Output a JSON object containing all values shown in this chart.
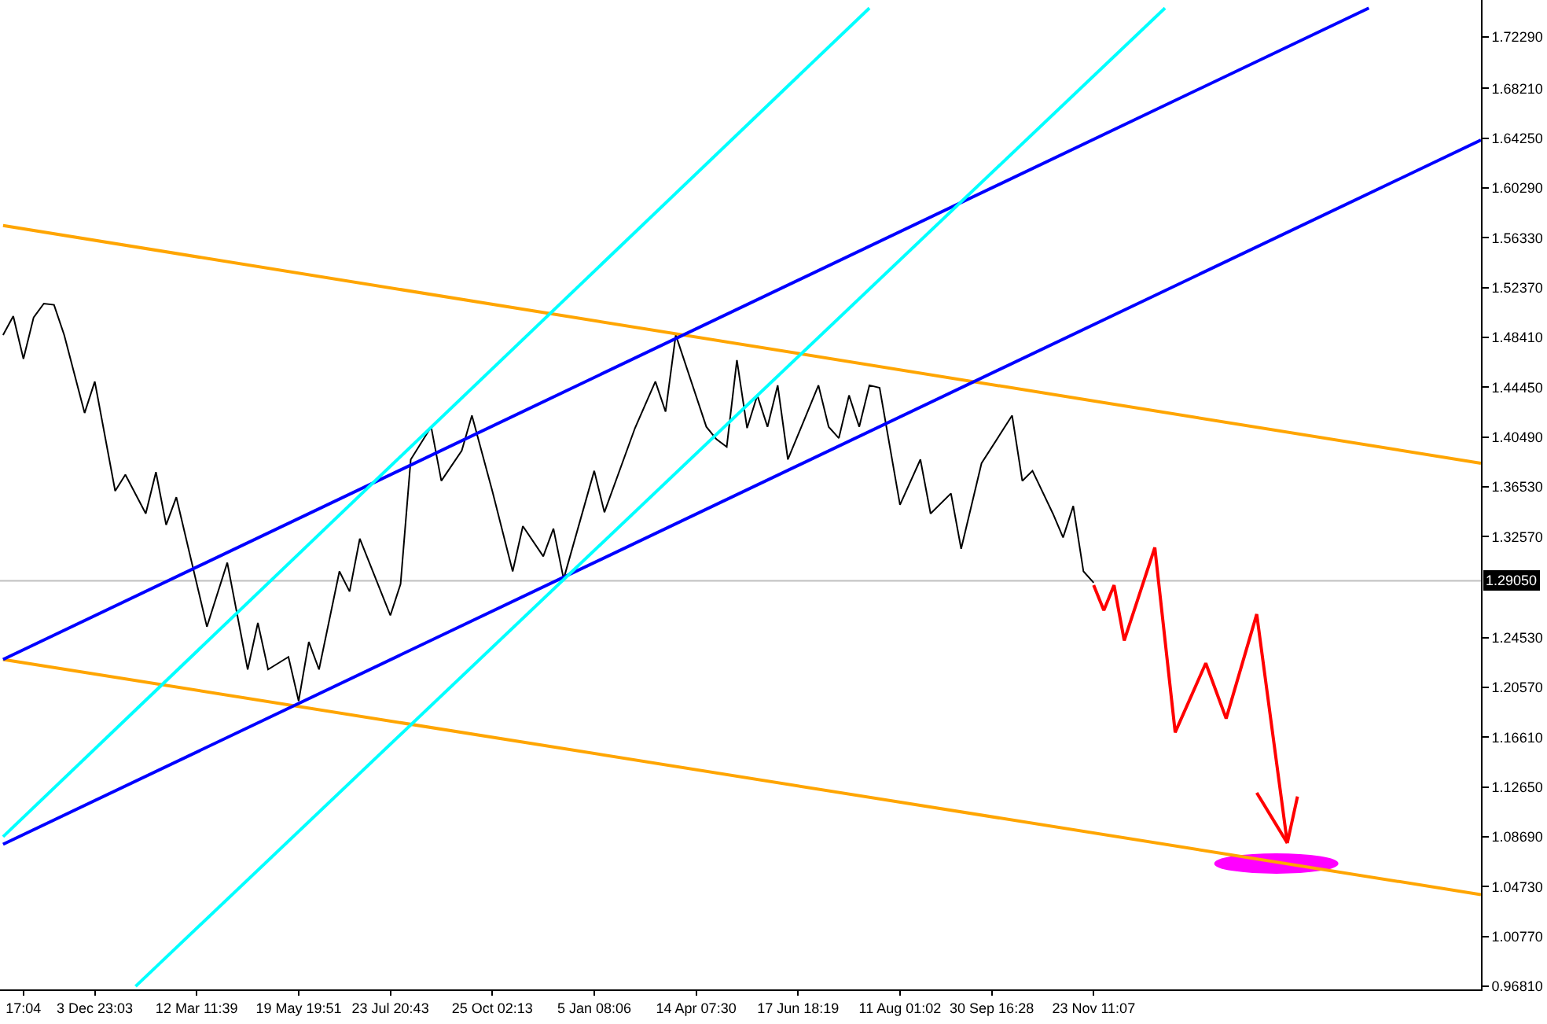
{
  "chart_data": {
    "type": "line",
    "ylim": [
      0.9656,
      1.7524
    ],
    "categories": [
      null,
      null,
      "17:04",
      null,
      null,
      null,
      null,
      null,
      null,
      "3 Dec 23:03",
      null,
      null,
      null,
      null,
      null,
      null,
      null,
      null,
      null,
      "12 Mar 11:39",
      null,
      null,
      null,
      null,
      null,
      null,
      null,
      null,
      null,
      "19 May 19:51",
      null,
      null,
      null,
      null,
      null,
      null,
      null,
      null,
      "23 Jul 20:43",
      null,
      null,
      null,
      null,
      null,
      null,
      null,
      null,
      null,
      "25 Oct 02:13",
      null,
      null,
      null,
      null,
      null,
      null,
      null,
      null,
      null,
      "5 Jan 08:06",
      null,
      null,
      null,
      null,
      null,
      null,
      null,
      null,
      null,
      "14 Apr 07:30",
      null,
      null,
      null,
      null,
      null,
      null,
      null,
      null,
      null,
      "17 Jun 18:19",
      null,
      null,
      null,
      null,
      null,
      null,
      null,
      null,
      null,
      "11 Aug 01:02",
      null,
      null,
      null,
      null,
      null,
      null,
      null,
      null,
      "30 Sep 16:28",
      null,
      null,
      null,
      null,
      null,
      null,
      null,
      null,
      null,
      "23 Nov 11:07",
      null,
      null,
      null,
      null,
      null,
      null,
      null,
      null,
      null,
      null,
      null,
      null,
      null,
      null,
      null,
      null,
      null,
      null,
      null,
      null,
      null,
      null,
      null,
      null,
      null,
      null,
      null,
      null,
      null,
      null,
      null,
      null,
      null,
      null,
      null,
      null,
      null,
      null
    ],
    "yticks": [
      {
        "value": 0.9681,
        "label": "0.96810"
      },
      {
        "value": 1.0077,
        "label": "1.00770"
      },
      {
        "value": 1.0473,
        "label": "1.04730"
      },
      {
        "value": 1.0869,
        "label": "1.08690"
      },
      {
        "value": 1.1265,
        "label": "1.12650"
      },
      {
        "value": 1.1661,
        "label": "1.16610"
      },
      {
        "value": 1.2057,
        "label": "1.20570"
      },
      {
        "value": 1.2453,
        "label": "1.24530"
      },
      {
        "value": 1.3257,
        "label": "1.32570"
      },
      {
        "value": 1.3653,
        "label": "1.36530"
      },
      {
        "value": 1.4049,
        "label": "1.40490"
      },
      {
        "value": 1.4445,
        "label": "1.44450"
      },
      {
        "value": 1.4841,
        "label": "1.48410"
      },
      {
        "value": 1.5237,
        "label": "1.52370"
      },
      {
        "value": 1.5633,
        "label": "1.56330"
      },
      {
        "value": 1.6029,
        "label": "1.60290"
      },
      {
        "value": 1.6425,
        "label": "1.64250"
      },
      {
        "value": 1.6821,
        "label": "1.68210"
      },
      {
        "value": 1.7229,
        "label": "1.72290"
      }
    ],
    "grid": false,
    "marker": "none",
    "line_style": "solid",
    "ref_lines": [
      {
        "axis": "y",
        "value": 1.2905,
        "label": "1.29050",
        "color": "#c0c0c0"
      }
    ],
    "series": [
      {
        "color": "#000000",
        "values": [
          1.486,
          1.501,
          1.467,
          1.5,
          1.511,
          1.51,
          1.486,
          null,
          1.424,
          1.449,
          null,
          1.362,
          1.375,
          null,
          1.344,
          1.377,
          1.335,
          1.357,
          null,
          null,
          1.254,
          null,
          1.305,
          null,
          1.22,
          1.257,
          1.22,
          null,
          1.23,
          1.195,
          1.242,
          1.22,
          null,
          1.298,
          1.282,
          1.324,
          null,
          null,
          1.263,
          1.288,
          1.387,
          null,
          1.413,
          1.37,
          null,
          1.394,
          1.422,
          null,
          1.362,
          null,
          1.298,
          1.334,
          null,
          1.31,
          1.332,
          1.292,
          null,
          null,
          1.378,
          1.345,
          null,
          null,
          1.412,
          null,
          1.449,
          1.425,
          1.486,
          null,
          null,
          1.413,
          1.403,
          1.397,
          1.466,
          1.412,
          1.438,
          1.413,
          1.446,
          1.387,
          null,
          null,
          1.446,
          1.413,
          1.404,
          1.438,
          1.413,
          1.446,
          1.444,
          null,
          1.351,
          null,
          1.387,
          1.344,
          null,
          1.36,
          1.316,
          null,
          1.384,
          null,
          null,
          1.422,
          1.37,
          1.378,
          null,
          1.344,
          1.325,
          1.35,
          1.298,
          1.289,
          null,
          null,
          null,
          null,
          null,
          null,
          null,
          null,
          null,
          null,
          null,
          null,
          null,
          null,
          null,
          null,
          null,
          null,
          null,
          null,
          null,
          null,
          null,
          null,
          null,
          null,
          null,
          null,
          null,
          null,
          null,
          null,
          null,
          null,
          null,
          null,
          null,
          null
        ]
      },
      {
        "color": "#ffa500",
        "values": [
          1.573,
          null,
          null,
          null,
          null,
          null,
          null,
          null,
          null,
          null,
          null,
          null,
          null,
          null,
          null,
          null,
          null,
          null,
          null,
          null,
          null,
          null,
          null,
          null,
          null,
          null,
          null,
          null,
          null,
          null,
          null,
          null,
          null,
          null,
          null,
          null,
          null,
          null,
          null,
          null,
          null,
          null,
          null,
          null,
          null,
          null,
          null,
          null,
          null,
          null,
          null,
          null,
          null,
          null,
          null,
          null,
          null,
          null,
          null,
          null,
          null,
          null,
          null,
          null,
          null,
          null,
          null,
          null,
          null,
          null,
          null,
          null,
          null,
          null,
          null,
          null,
          null,
          null,
          null,
          null,
          null,
          null,
          null,
          null,
          null,
          null,
          null,
          null,
          null,
          null,
          null,
          null,
          null,
          null,
          null,
          null,
          null,
          null,
          null,
          null,
          null,
          null,
          null,
          null,
          null,
          null,
          null,
          null,
          null,
          null,
          null,
          null,
          null,
          null,
          null,
          null,
          null,
          null,
          null,
          null,
          null,
          null,
          null,
          null,
          null,
          null,
          null,
          null,
          null,
          null,
          null,
          null,
          null,
          null,
          null,
          null,
          null,
          null,
          null,
          null,
          null,
          null,
          null,
          null,
          null,
          1.384
        ]
      },
      {
        "color": "#ffa500",
        "values": [
          1.228,
          null,
          null,
          null,
          null,
          null,
          null,
          null,
          null,
          null,
          null,
          null,
          null,
          null,
          null,
          null,
          null,
          null,
          null,
          null,
          null,
          null,
          null,
          null,
          null,
          null,
          null,
          null,
          null,
          null,
          null,
          null,
          null,
          null,
          null,
          null,
          null,
          null,
          null,
          null,
          null,
          null,
          null,
          null,
          null,
          null,
          null,
          null,
          null,
          null,
          null,
          null,
          null,
          null,
          null,
          null,
          null,
          null,
          null,
          null,
          null,
          null,
          null,
          null,
          null,
          null,
          null,
          null,
          null,
          null,
          null,
          null,
          null,
          null,
          null,
          null,
          null,
          null,
          null,
          null,
          null,
          null,
          null,
          null,
          null,
          null,
          null,
          null,
          null,
          null,
          null,
          null,
          null,
          null,
          null,
          null,
          null,
          null,
          null,
          null,
          null,
          null,
          null,
          null,
          null,
          null,
          null,
          null,
          null,
          null,
          null,
          null,
          null,
          null,
          null,
          null,
          null,
          null,
          null,
          null,
          null,
          null,
          null,
          null,
          null,
          null,
          null,
          null,
          null,
          null,
          null,
          null,
          null,
          null,
          null,
          null,
          null,
          null,
          null,
          null,
          null,
          null,
          null,
          null,
          null,
          1.041
        ]
      },
      {
        "color": "#0000ff",
        "values": [
          1.228,
          null,
          null,
          null,
          null,
          null,
          null,
          null,
          null,
          null,
          null,
          null,
          null,
          null,
          null,
          null,
          null,
          null,
          null,
          null,
          null,
          null,
          null,
          null,
          null,
          null,
          null,
          null,
          null,
          null,
          null,
          null,
          null,
          null,
          null,
          null,
          null,
          null,
          null,
          null,
          null,
          null,
          null,
          null,
          null,
          null,
          null,
          null,
          null,
          null,
          null,
          null,
          null,
          null,
          null,
          null,
          null,
          null,
          null,
          null,
          null,
          null,
          null,
          null,
          null,
          null,
          null,
          null,
          null,
          null,
          null,
          null,
          null,
          null,
          null,
          null,
          null,
          null,
          null,
          null,
          null,
          null,
          null,
          null,
          null,
          null,
          null,
          null,
          null,
          null,
          null,
          null,
          null,
          null,
          null,
          null,
          null,
          null,
          null,
          null,
          null,
          null,
          null,
          null,
          null,
          null,
          null,
          null,
          null,
          null,
          null,
          null,
          null,
          null,
          null,
          null,
          null,
          null,
          null,
          null,
          null,
          null,
          null,
          null,
          null,
          null,
          null,
          null,
          null,
          null,
          null,
          null,
          null,
          null,
          1.746,
          null,
          null,
          null,
          null,
          null,
          null,
          null,
          null,
          null,
          null,
          null
        ]
      },
      {
        "color": "#0000ff",
        "values": [
          1.081,
          null,
          null,
          null,
          null,
          null,
          null,
          null,
          null,
          null,
          null,
          null,
          null,
          null,
          null,
          null,
          null,
          null,
          null,
          null,
          null,
          null,
          null,
          null,
          null,
          null,
          null,
          null,
          null,
          null,
          null,
          null,
          null,
          null,
          null,
          null,
          null,
          null,
          null,
          null,
          null,
          null,
          null,
          null,
          null,
          null,
          null,
          null,
          null,
          null,
          null,
          null,
          null,
          null,
          null,
          null,
          null,
          null,
          null,
          null,
          null,
          null,
          null,
          null,
          null,
          null,
          null,
          null,
          null,
          null,
          null,
          null,
          null,
          null,
          null,
          null,
          null,
          null,
          null,
          null,
          null,
          null,
          null,
          null,
          null,
          null,
          null,
          null,
          null,
          null,
          null,
          null,
          null,
          null,
          null,
          null,
          null,
          null,
          null,
          null,
          null,
          null,
          null,
          null,
          null,
          null,
          null,
          null,
          null,
          null,
          null,
          null,
          null,
          null,
          null,
          null,
          null,
          null,
          null,
          null,
          null,
          null,
          null,
          null,
          null,
          null,
          null,
          null,
          null,
          null,
          null,
          null,
          null,
          null,
          null,
          null,
          null,
          null,
          null,
          null,
          null,
          null,
          null,
          null,
          null,
          1.641
        ]
      },
      {
        "color": "#00ffff",
        "values": [
          1.087,
          null,
          null,
          null,
          null,
          null,
          null,
          null,
          null,
          null,
          null,
          null,
          null,
          null,
          null,
          null,
          null,
          null,
          null,
          null,
          null,
          null,
          null,
          null,
          null,
          null,
          null,
          null,
          null,
          null,
          null,
          null,
          null,
          null,
          null,
          null,
          null,
          null,
          null,
          null,
          null,
          null,
          null,
          null,
          null,
          null,
          null,
          null,
          null,
          null,
          null,
          null,
          null,
          null,
          null,
          null,
          null,
          null,
          null,
          null,
          null,
          null,
          null,
          null,
          null,
          null,
          null,
          null,
          null,
          null,
          null,
          null,
          null,
          null,
          null,
          null,
          null,
          null,
          null,
          null,
          null,
          null,
          null,
          null,
          null,
          1.746,
          null,
          null,
          null,
          null,
          null,
          null,
          null,
          null,
          null,
          null,
          null,
          null,
          null,
          null,
          null,
          null,
          null,
          null,
          null,
          null,
          null,
          null,
          null,
          null,
          null,
          null,
          null,
          null,
          null,
          null,
          null,
          null,
          null,
          null,
          null,
          null,
          null,
          null,
          null,
          null,
          null,
          null,
          null,
          null,
          null,
          null,
          null,
          null,
          null,
          null,
          null,
          null,
          null,
          null,
          null,
          null,
          null,
          null,
          null,
          null
        ]
      },
      {
        "color": "#00ffff",
        "values": [
          null,
          null,
          null,
          null,
          null,
          null,
          null,
          null,
          null,
          null,
          null,
          null,
          null,
          0.968,
          null,
          null,
          null,
          null,
          null,
          null,
          null,
          null,
          null,
          null,
          null,
          null,
          null,
          null,
          null,
          null,
          null,
          null,
          null,
          null,
          null,
          null,
          null,
          null,
          null,
          null,
          null,
          null,
          null,
          null,
          null,
          null,
          null,
          null,
          null,
          null,
          null,
          null,
          null,
          null,
          null,
          null,
          null,
          null,
          null,
          null,
          null,
          null,
          null,
          null,
          null,
          null,
          null,
          null,
          null,
          null,
          null,
          null,
          null,
          null,
          null,
          null,
          null,
          null,
          null,
          null,
          null,
          null,
          null,
          null,
          null,
          null,
          null,
          null,
          null,
          null,
          null,
          null,
          null,
          null,
          null,
          null,
          null,
          null,
          null,
          null,
          null,
          null,
          null,
          null,
          null,
          null,
          null,
          null,
          null,
          null,
          null,
          null,
          null,
          null,
          1.746,
          null,
          null,
          null,
          null,
          null,
          null,
          null,
          null,
          null,
          null,
          null,
          null,
          null,
          null,
          null,
          null,
          null,
          null,
          null,
          null,
          null,
          null,
          null,
          null,
          null,
          null,
          null,
          null,
          null,
          null,
          null
        ]
      },
      {
        "color": "#ff0000",
        "values": [
          null,
          null,
          null,
          null,
          null,
          null,
          null,
          null,
          null,
          null,
          null,
          null,
          null,
          null,
          null,
          null,
          null,
          null,
          null,
          null,
          null,
          null,
          null,
          null,
          null,
          null,
          null,
          null,
          null,
          null,
          null,
          null,
          null,
          null,
          null,
          null,
          null,
          null,
          null,
          null,
          null,
          null,
          null,
          null,
          null,
          null,
          null,
          null,
          null,
          null,
          null,
          null,
          null,
          null,
          null,
          null,
          null,
          null,
          null,
          null,
          null,
          null,
          null,
          null,
          null,
          null,
          null,
          null,
          null,
          null,
          null,
          null,
          null,
          null,
          null,
          null,
          null,
          null,
          null,
          null,
          null,
          null,
          null,
          null,
          null,
          null,
          null,
          null,
          null,
          null,
          null,
          null,
          null,
          null,
          null,
          null,
          null,
          null,
          null,
          null,
          null,
          null,
          null,
          null,
          null,
          null,
          null,
          1.287,
          1.267,
          1.287,
          1.243,
          null,
          null,
          1.317,
          null,
          1.17,
          null,
          null,
          1.225,
          null,
          1.181,
          null,
          null,
          1.264,
          null,
          null,
          1.082,
          1.119,
          null,
          null,
          null,
          null,
          null,
          null,
          null,
          null,
          null,
          null,
          null,
          null,
          null,
          null,
          null,
          null,
          null,
          null
        ]
      },
      {
        "color": "#ff0000",
        "values": [
          null,
          null,
          null,
          null,
          null,
          null,
          null,
          null,
          null,
          null,
          null,
          null,
          null,
          null,
          null,
          null,
          null,
          null,
          null,
          null,
          null,
          null,
          null,
          null,
          null,
          null,
          null,
          null,
          null,
          null,
          null,
          null,
          null,
          null,
          null,
          null,
          null,
          null,
          null,
          null,
          null,
          null,
          null,
          null,
          null,
          null,
          null,
          null,
          null,
          null,
          null,
          null,
          null,
          null,
          null,
          null,
          null,
          null,
          null,
          null,
          null,
          null,
          null,
          null,
          null,
          null,
          null,
          null,
          null,
          null,
          null,
          null,
          null,
          null,
          null,
          null,
          null,
          null,
          null,
          null,
          null,
          null,
          null,
          null,
          null,
          null,
          null,
          null,
          null,
          null,
          null,
          null,
          null,
          null,
          null,
          null,
          null,
          null,
          null,
          null,
          null,
          null,
          null,
          null,
          null,
          null,
          null,
          null,
          null,
          null,
          null,
          null,
          null,
          null,
          null,
          null,
          null,
          null,
          null,
          null,
          null,
          null,
          null,
          1.122,
          null,
          null,
          1.082,
          null,
          null,
          null,
          null,
          null,
          null,
          null,
          null,
          null,
          null,
          null,
          null,
          null,
          null,
          null,
          null,
          null,
          null,
          null
        ]
      }
    ]
  }
}
